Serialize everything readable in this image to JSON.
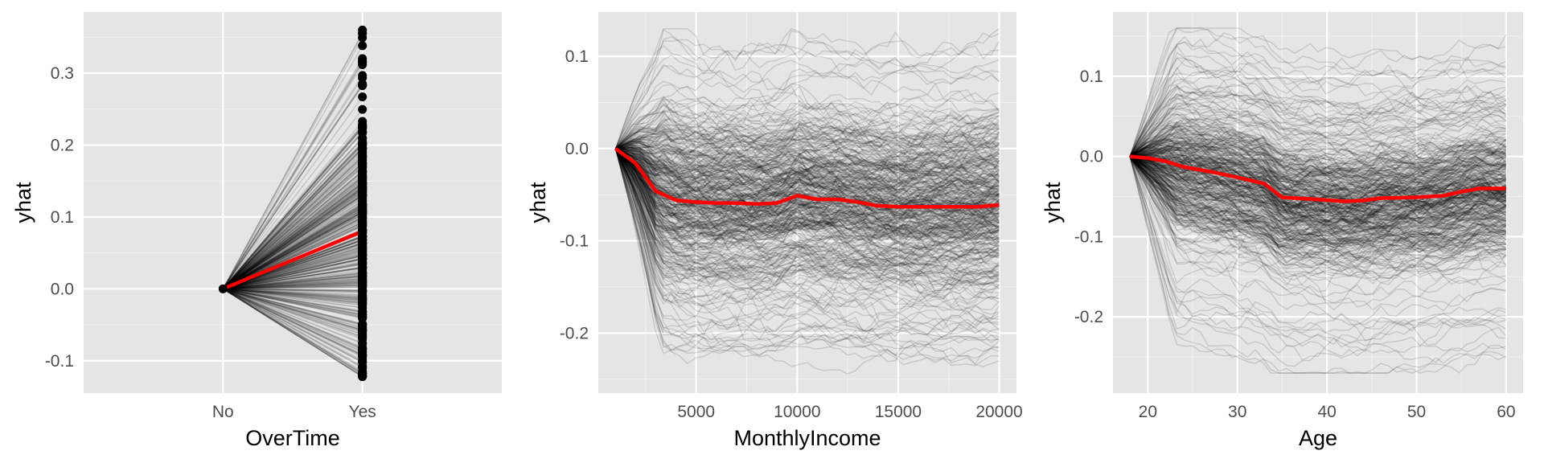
{
  "chart_data": [
    {
      "type": "line",
      "subtype": "ice",
      "xlabel": "OverTime",
      "ylabel": "yhat",
      "x_type": "categorical",
      "categories": [
        "No",
        "Yes"
      ],
      "ylim": [
        -0.145,
        0.385
      ],
      "y_ticks": [
        -0.1,
        0.0,
        0.1,
        0.2,
        0.3
      ],
      "y_tick_labels": [
        "-0.1",
        "0.0",
        "0.1",
        "0.2",
        "0.3"
      ],
      "grid": true,
      "ice_range": {
        "min": -0.122,
        "max": 0.36,
        "count": 400
      },
      "average_series": {
        "x": [
          "No",
          "Yes"
        ],
        "y": [
          0.0,
          0.08
        ]
      },
      "average_color": "#ff0000",
      "point_color": "#000000"
    },
    {
      "type": "line",
      "subtype": "ice",
      "xlabel": "MonthlyIncome",
      "ylabel": "yhat",
      "xlim": [
        1009,
        20000
      ],
      "ylim": [
        -0.265,
        0.148
      ],
      "x_ticks": [
        5000,
        10000,
        15000,
        20000
      ],
      "x_tick_labels": [
        "5000",
        "10000",
        "15000",
        "20000"
      ],
      "y_ticks": [
        -0.2,
        -0.1,
        0.0,
        0.1
      ],
      "y_tick_labels": [
        "-0.2",
        "-0.1",
        "0.0",
        "0.1"
      ],
      "grid": true,
      "ice_range": {
        "min": -0.245,
        "max": 0.13,
        "count": 400
      },
      "average_series": {
        "x": [
          1009,
          2000,
          3000,
          4000,
          5000,
          6000,
          7000,
          8000,
          9000,
          10000,
          11000,
          12000,
          13000,
          14000,
          15000,
          16000,
          17000,
          18000,
          19000,
          20000
        ],
        "y": [
          0.0,
          -0.016,
          -0.046,
          -0.056,
          -0.058,
          -0.059,
          -0.059,
          -0.06,
          -0.059,
          -0.051,
          -0.055,
          -0.055,
          -0.058,
          -0.062,
          -0.063,
          -0.063,
          -0.063,
          -0.063,
          -0.063,
          -0.061
        ]
      },
      "average_color": "#ff0000"
    },
    {
      "type": "line",
      "subtype": "ice",
      "xlabel": "Age",
      "ylabel": "yhat",
      "xlim": [
        18,
        60
      ],
      "ylim": [
        -0.295,
        0.18
      ],
      "x_ticks": [
        20,
        30,
        40,
        50,
        60
      ],
      "x_tick_labels": [
        "20",
        "30",
        "40",
        "50",
        "60"
      ],
      "y_ticks": [
        -0.2,
        -0.1,
        0.0,
        0.1
      ],
      "y_tick_labels": [
        "-0.2",
        "-0.1",
        "0.0",
        "0.1"
      ],
      "grid": true,
      "ice_range": {
        "min": -0.27,
        "max": 0.16,
        "count": 400
      },
      "average_series": {
        "x": [
          18,
          20,
          22,
          24,
          27,
          30,
          33,
          35,
          38,
          42,
          44,
          46,
          50,
          53,
          55,
          57,
          60
        ],
        "y": [
          0.0,
          -0.002,
          -0.006,
          -0.013,
          -0.019,
          -0.026,
          -0.034,
          -0.051,
          -0.053,
          -0.056,
          -0.055,
          -0.052,
          -0.051,
          -0.049,
          -0.044,
          -0.04,
          -0.04
        ]
      },
      "average_color": "#ff0000"
    }
  ]
}
